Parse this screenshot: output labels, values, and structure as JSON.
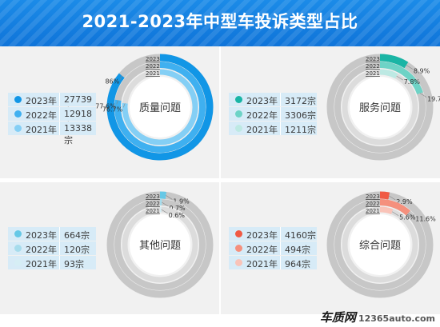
{
  "title": "2021-2023年中型车投诉类型占比",
  "watermark": {
    "brand": "车质网",
    "site": "12365auto.com"
  },
  "colors": {
    "track_outer": "#c7c7c7",
    "track_inner": "#dcdcdc",
    "header": "#1180e0"
  },
  "chart_data": [
    {
      "type": "pie",
      "center_label": "质量问题",
      "ring_labels": [
        "2023",
        "2022",
        "2021"
      ],
      "colors": [
        "#1196e6",
        "#3fb0f0",
        "#84cff5"
      ],
      "series": [
        {
          "name": "2023年",
          "count": "27739宗",
          "percent": 86.0,
          "label": "86%"
        },
        {
          "name": "2022年",
          "count": "12918宗",
          "percent": 77.6,
          "label": "77.6%"
        },
        {
          "name": "2021年",
          "count": "13338宗",
          "percent": 76.7,
          "label": "76.7%"
        }
      ]
    },
    {
      "type": "pie",
      "center_label": "服务问题",
      "ring_labels": [
        "2023",
        "2022",
        "2021"
      ],
      "colors": [
        "#1ab5a5",
        "#6ed3c6",
        "#bde9e3"
      ],
      "series": [
        {
          "name": "2023年",
          "count": "3172宗",
          "percent": 8.9,
          "label": "8.9%"
        },
        {
          "name": "2022年",
          "count": "3306宗",
          "percent": 19.7,
          "label": "19.7%"
        },
        {
          "name": "2021年",
          "count": "1211宗",
          "percent": 7.8,
          "label": "7.8%"
        }
      ]
    },
    {
      "type": "pie",
      "center_label": "其他问题",
      "ring_labels": [
        "2023",
        "2022",
        "2021"
      ],
      "colors": [
        "#66c8e6",
        "#a6dcec",
        "#d6eef5"
      ],
      "series": [
        {
          "name": "2023年",
          "count": "664宗",
          "percent": 1.9,
          "label": "1.9%"
        },
        {
          "name": "2022年",
          "count": "120宗",
          "percent": 0.7,
          "label": "0.7%"
        },
        {
          "name": "2021年",
          "count": "93宗",
          "percent": 0.6,
          "label": "0.6%"
        }
      ]
    },
    {
      "type": "pie",
      "center_label": "综合问题",
      "ring_labels": [
        "2023",
        "2022",
        "2021"
      ],
      "colors": [
        "#f05a44",
        "#f5907d",
        "#f9c3b8"
      ],
      "series": [
        {
          "name": "2023年",
          "count": "4160宗",
          "percent": 2.9,
          "label": "2.9%"
        },
        {
          "name": "2022年",
          "count": "494宗",
          "percent": 11.6,
          "label": "11.6%"
        },
        {
          "name": "2021年",
          "count": "964宗",
          "percent": 5.6,
          "label": "5.6%"
        }
      ]
    }
  ]
}
